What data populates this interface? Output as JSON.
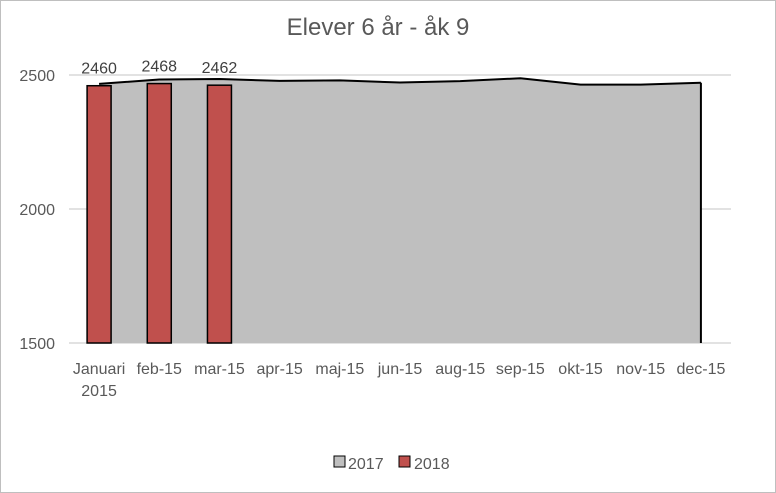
{
  "chart_data": {
    "type": "bar",
    "title": "Elever 6 år - åk 9",
    "categories": [
      [
        "Januari",
        "2015"
      ],
      [
        "feb-15"
      ],
      [
        "mar-15"
      ],
      [
        "apr-15"
      ],
      [
        "maj-15"
      ],
      [
        "jun-15"
      ],
      [
        "aug-15"
      ],
      [
        "sep-15"
      ],
      [
        "okt-15"
      ],
      [
        "nov-15"
      ],
      [
        "dec-15"
      ]
    ],
    "series": [
      {
        "name": "2017",
        "type": "area",
        "color": "#bfbfbf",
        "values": [
          2467,
          2483,
          2485,
          2478,
          2480,
          2472,
          2477,
          2488,
          2464,
          2464,
          2471
        ]
      },
      {
        "name": "2018",
        "type": "bar",
        "color": "#c0504d",
        "values": [
          2460,
          2468,
          2462,
          null,
          null,
          null,
          null,
          null,
          null,
          null,
          null
        ],
        "data_labels": [
          "2460",
          "2468",
          "2462"
        ]
      }
    ],
    "ylim": [
      1500,
      2500
    ],
    "yticks": [
      "1500",
      "2000",
      "2500"
    ],
    "grid": true,
    "legend": "bottom-center",
    "xlabel": "",
    "ylabel": ""
  }
}
